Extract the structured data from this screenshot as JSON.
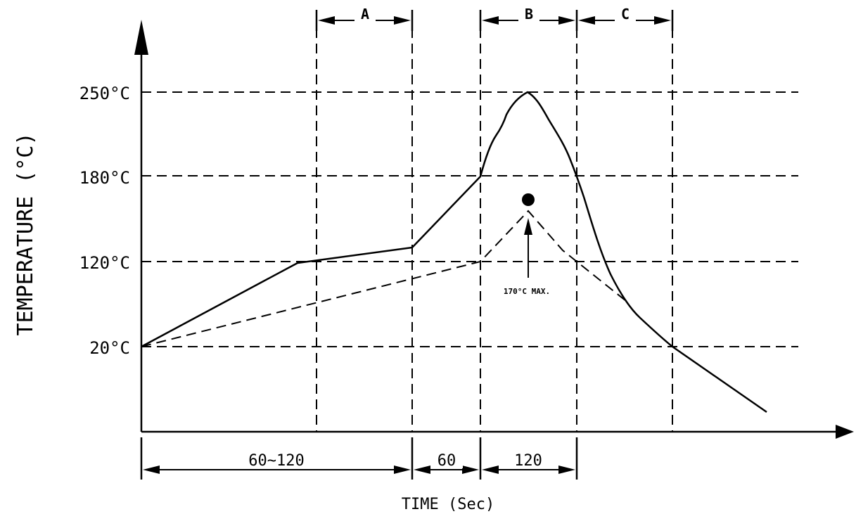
{
  "diagram": {
    "y_axis_title": "TEMPERATURE (°C)",
    "x_axis_title": "TIME (Sec)",
    "y_ticks": [
      "250°C",
      "180°C",
      "120°C",
      "20°C"
    ],
    "zones": {
      "a": "A",
      "b": "B",
      "c": "C"
    },
    "durations": {
      "preheat": "60~120",
      "ramp": "60",
      "peak": "120"
    },
    "annotation": "170°C MAX."
  }
}
